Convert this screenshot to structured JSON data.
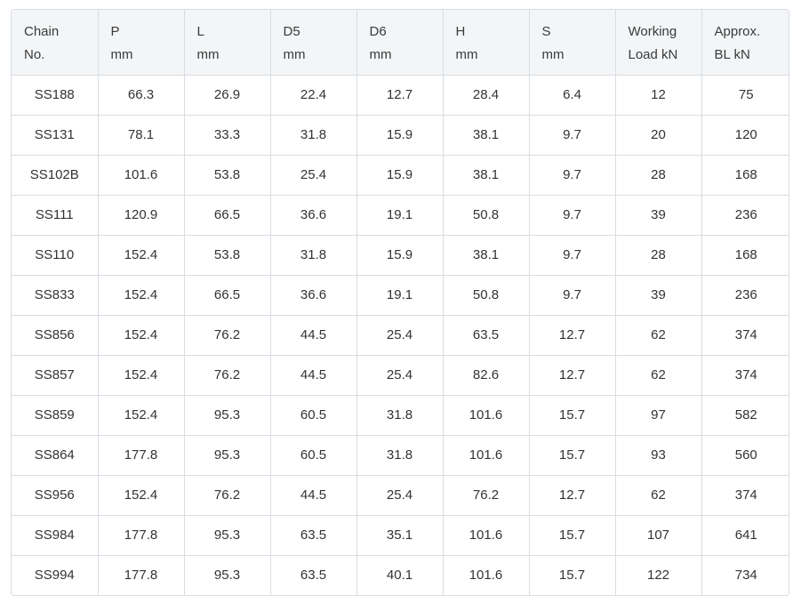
{
  "table": {
    "headers": [
      {
        "line1": "Chain",
        "line2": "No."
      },
      {
        "line1": "P",
        "line2": "mm"
      },
      {
        "line1": "L",
        "line2": "mm"
      },
      {
        "line1": "D5",
        "line2": "mm"
      },
      {
        "line1": "D6",
        "line2": "mm"
      },
      {
        "line1": "H",
        "line2": "mm"
      },
      {
        "line1": "S",
        "line2": "mm"
      },
      {
        "line1": "Working",
        "line2": "Load kN"
      },
      {
        "line1": "Approx.",
        "line2": "BL kN"
      }
    ],
    "rows": [
      [
        "SS188",
        "66.3",
        "26.9",
        "22.4",
        "12.7",
        "28.4",
        "6.4",
        "12",
        "75"
      ],
      [
        "SS131",
        "78.1",
        "33.3",
        "31.8",
        "15.9",
        "38.1",
        "9.7",
        "20",
        "120"
      ],
      [
        "SS102B",
        "101.6",
        "53.8",
        "25.4",
        "15.9",
        "38.1",
        "9.7",
        "28",
        "168"
      ],
      [
        "SS111",
        "120.9",
        "66.5",
        "36.6",
        "19.1",
        "50.8",
        "9.7",
        "39",
        "236"
      ],
      [
        "SS110",
        "152.4",
        "53.8",
        "31.8",
        "15.9",
        "38.1",
        "9.7",
        "28",
        "168"
      ],
      [
        "SS833",
        "152.4",
        "66.5",
        "36.6",
        "19.1",
        "50.8",
        "9.7",
        "39",
        "236"
      ],
      [
        "SS856",
        "152.4",
        "76.2",
        "44.5",
        "25.4",
        "63.5",
        "12.7",
        "62",
        "374"
      ],
      [
        "SS857",
        "152.4",
        "76.2",
        "44.5",
        "25.4",
        "82.6",
        "12.7",
        "62",
        "374"
      ],
      [
        "SS859",
        "152.4",
        "95.3",
        "60.5",
        "31.8",
        "101.6",
        "15.7",
        "97",
        "582"
      ],
      [
        "SS864",
        "177.8",
        "95.3",
        "60.5",
        "31.8",
        "101.6",
        "15.7",
        "93",
        "560"
      ],
      [
        "SS956",
        "152.4",
        "76.2",
        "44.5",
        "25.4",
        "76.2",
        "12.7",
        "62",
        "374"
      ],
      [
        "SS984",
        "177.8",
        "95.3",
        "63.5",
        "35.1",
        "101.6",
        "15.7",
        "107",
        "641"
      ],
      [
        "SS994",
        "177.8",
        "95.3",
        "63.5",
        "40.1",
        "101.6",
        "15.7",
        "122",
        "734"
      ]
    ]
  }
}
